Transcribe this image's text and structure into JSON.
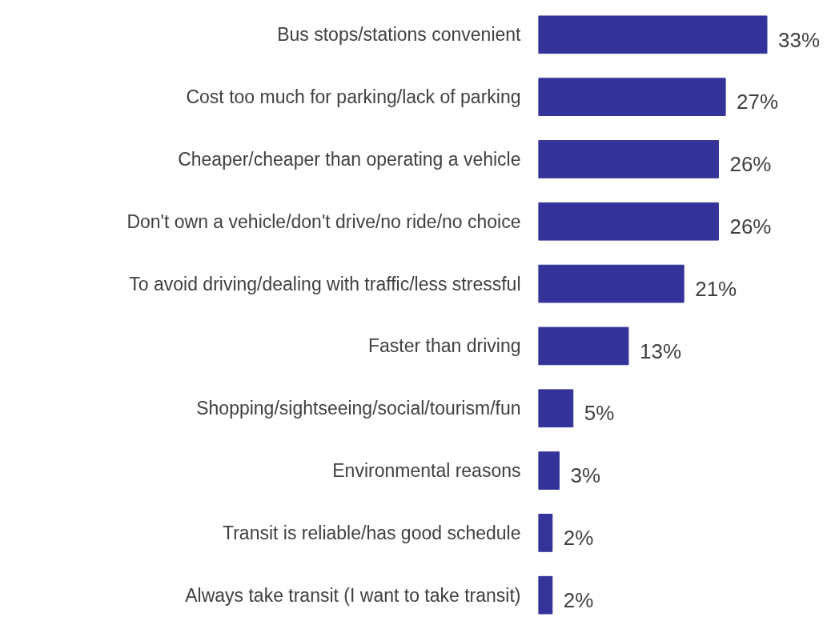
{
  "chart_data": {
    "type": "bar",
    "orientation": "horizontal",
    "categories": [
      "Bus stops/stations convenient",
      "Cost too much for parking/lack of parking",
      "Cheaper/cheaper than operating a vehicle",
      "Don't own a vehicle/don't drive/no ride/no choice",
      "To avoid driving/dealing with traffic/less stressful",
      "Faster than driving",
      "Shopping/sightseeing/social/tourism/fun",
      "Environmental reasons",
      "Transit is reliable/has good schedule",
      "Always take transit (I want to take transit)"
    ],
    "values": [
      33,
      27,
      26,
      26,
      21,
      13,
      5,
      3,
      2,
      2
    ],
    "value_labels": [
      "33%",
      "27%",
      "26%",
      "26%",
      "21%",
      "13%",
      "5%",
      "3%",
      "2%",
      "2%"
    ],
    "color": "#333399"
  }
}
